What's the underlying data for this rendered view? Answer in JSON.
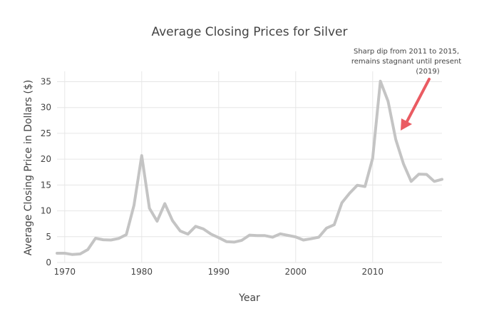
{
  "chart_data": {
    "type": "line",
    "title": "Average Closing Prices for Silver",
    "xlabel": "Year",
    "ylabel": "Average Closing Price in Dollars ($)",
    "xlim": [
      1969,
      2019
    ],
    "ylim": [
      0,
      37
    ],
    "xticks": [
      1970,
      1980,
      1990,
      2000,
      2010
    ],
    "yticks": [
      0,
      5,
      10,
      15,
      20,
      25,
      30,
      35
    ],
    "grid": true,
    "line_color": "#c4c4c4",
    "x": [
      1969,
      1970,
      1971,
      1972,
      1973,
      1974,
      1975,
      1976,
      1977,
      1978,
      1979,
      1980,
      1981,
      1982,
      1983,
      1984,
      1985,
      1986,
      1987,
      1988,
      1989,
      1990,
      1991,
      1992,
      1993,
      1994,
      1995,
      1996,
      1997,
      1998,
      1999,
      2000,
      2001,
      2002,
      2003,
      2004,
      2005,
      2006,
      2007,
      2008,
      2009,
      2010,
      2011,
      2012,
      2013,
      2014,
      2015,
      2016,
      2017,
      2018,
      2019
    ],
    "y": [
      1.8,
      1.8,
      1.55,
      1.65,
      2.5,
      4.7,
      4.4,
      4.35,
      4.65,
      5.4,
      11.1,
      20.7,
      10.5,
      8.0,
      11.4,
      8.1,
      6.1,
      5.5,
      7.0,
      6.5,
      5.5,
      4.8,
      4.05,
      3.95,
      4.3,
      5.3,
      5.2,
      5.2,
      4.9,
      5.55,
      5.25,
      4.95,
      4.35,
      4.6,
      4.9,
      6.65,
      7.3,
      11.55,
      13.4,
      14.95,
      14.7,
      20.2,
      35.1,
      31.2,
      23.8,
      19.1,
      15.7,
      17.1,
      17.05,
      15.7,
      16.1
    ],
    "annotation": {
      "lines": [
        "Sharp dip from 2011 to 2015,",
        "remains stagnant until present",
        "(2019)"
      ],
      "arrow_color": "#ea5b62"
    }
  }
}
